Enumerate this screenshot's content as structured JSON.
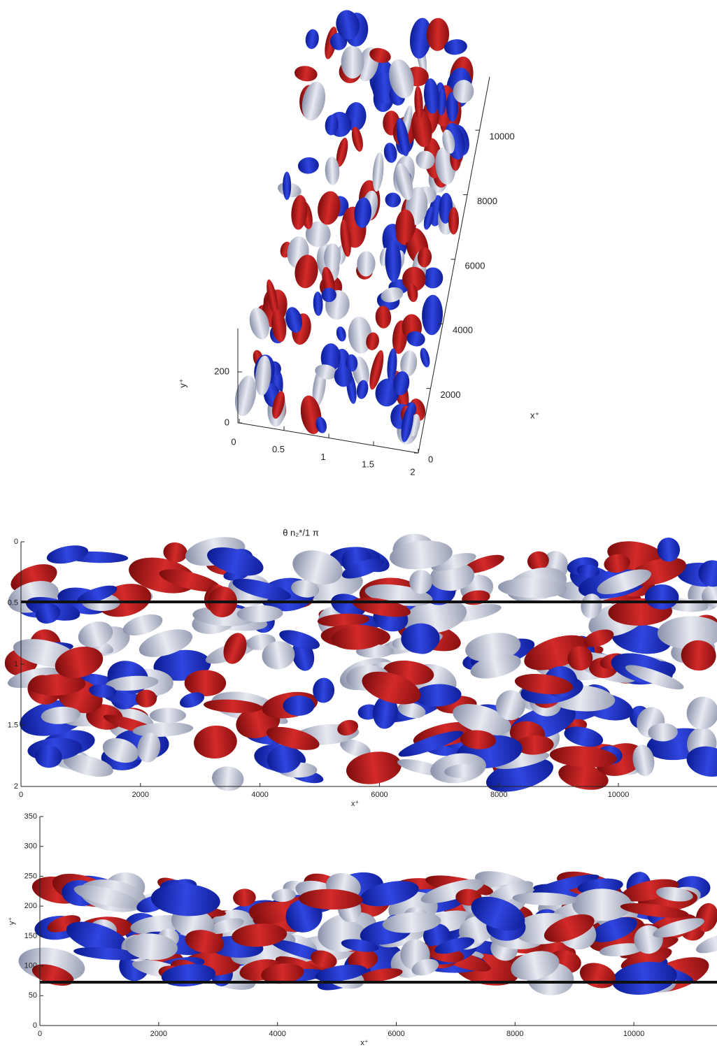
{
  "chart_data": [
    {
      "type": "isosurface3d",
      "xlabel": "x⁺",
      "ylabel": "y⁺",
      "xlim": [
        0,
        11650
      ],
      "xticks": [
        0,
        2000,
        4000,
        6000,
        8000,
        10000
      ],
      "ylim": [
        0,
        370
      ],
      "yticks": [
        0,
        200
      ],
      "zlim": [
        0,
        2
      ],
      "zticks": [
        0,
        0.5,
        1,
        1.5,
        2
      ]
    },
    {
      "type": "isosurface-top",
      "title": "θ n₂*/1 π",
      "xlabel": "x⁺",
      "xlim": [
        0,
        11650
      ],
      "xticks": [
        0,
        2000,
        4000,
        6000,
        8000,
        10000
      ],
      "ylim": [
        0,
        2
      ],
      "yticks": [
        0,
        0.5,
        1,
        1.5,
        2
      ],
      "y_inverted": true
    },
    {
      "type": "isosurface-side",
      "xlabel": "x⁺",
      "ylabel": "y⁺",
      "xlim": [
        0,
        11400
      ],
      "xticks": [
        0,
        2000,
        4000,
        6000,
        8000,
        10000
      ],
      "ylim": [
        0,
        350
      ],
      "yticks": [
        0,
        50,
        100,
        150,
        200,
        250,
        300,
        350
      ]
    }
  ]
}
